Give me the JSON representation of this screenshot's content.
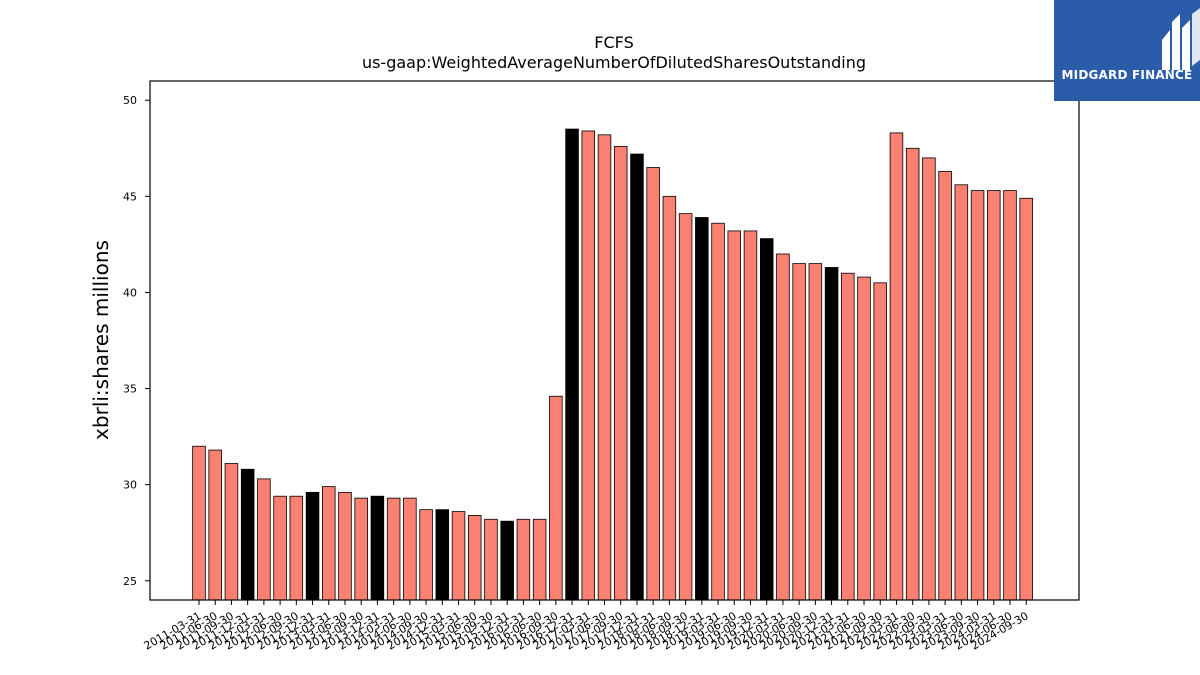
{
  "chart_data": {
    "type": "bar",
    "title": "FCFS",
    "subtitle": "us-gaap:WeightedAverageNumberOfDilutedSharesOutstanding",
    "ylabel": "xbrli:shares millions",
    "xlabel": "",
    "ylim": [
      24,
      51
    ],
    "yticks": [
      25,
      30,
      35,
      40,
      45,
      50
    ],
    "grid": false,
    "categories": [
      "2011-03-31",
      "2011-06-30",
      "2011-09-30",
      "2011-12-31",
      "2012-03-31",
      "2012-06-30",
      "2012-09-30",
      "2012-12-31",
      "2013-03-31",
      "2013-06-30",
      "2013-09-30",
      "2013-12-31",
      "2014-03-31",
      "2014-06-30",
      "2014-09-30",
      "2014-12-31",
      "2015-03-31",
      "2015-06-30",
      "2015-09-30",
      "2015-12-31",
      "2016-03-31",
      "2016-06-30",
      "2016-09-30",
      "2016-12-31",
      "2017-03-31",
      "2017-06-30",
      "2017-09-30",
      "2017-12-31",
      "2018-03-31",
      "2018-06-30",
      "2018-09-30",
      "2018-12-31",
      "2019-03-31",
      "2019-06-30",
      "2019-09-30",
      "2019-12-31",
      "2020-03-31",
      "2020-06-30",
      "2020-09-30",
      "2020-12-31",
      "2021-03-31",
      "2021-06-30",
      "2021-09-30",
      "2022-03-31",
      "2022-06-30",
      "2022-09-30",
      "2023-03-31",
      "2023-06-30",
      "2023-09-30",
      "2024-03-31",
      "2024-06-30",
      "2024-09-30"
    ],
    "values": [
      32.0,
      31.8,
      31.1,
      30.8,
      30.3,
      29.4,
      29.4,
      29.6,
      29.9,
      29.6,
      29.3,
      29.4,
      29.3,
      29.3,
      28.7,
      28.7,
      28.6,
      28.4,
      28.2,
      28.1,
      28.2,
      28.2,
      34.6,
      48.5,
      48.4,
      48.2,
      47.6,
      47.2,
      46.5,
      45.0,
      44.1,
      43.9,
      43.6,
      43.2,
      43.2,
      42.8,
      42.0,
      41.5,
      41.5,
      41.3,
      41.0,
      40.8,
      40.5,
      48.3,
      47.5,
      47.0,
      46.3,
      45.6,
      45.3,
      45.3,
      45.3,
      44.9
    ],
    "annual_flags": [
      0,
      0,
      0,
      1,
      0,
      0,
      0,
      1,
      0,
      0,
      0,
      1,
      0,
      0,
      0,
      1,
      0,
      0,
      0,
      1,
      0,
      0,
      0,
      1,
      0,
      0,
      0,
      1,
      0,
      0,
      0,
      1,
      0,
      0,
      0,
      1,
      0,
      0,
      0,
      1,
      0,
      0,
      0,
      0,
      0,
      0,
      0,
      0,
      0,
      0,
      0,
      0
    ],
    "colors": {
      "quarter": "#fa8072",
      "annual": "#000000",
      "edge": "#000000"
    }
  },
  "logo": {
    "text": "MIDGARD FINANCE",
    "background": "#2a5caa"
  }
}
